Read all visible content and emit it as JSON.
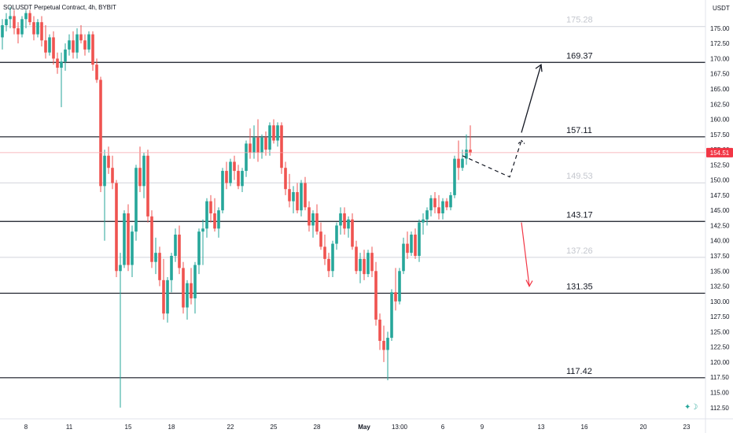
{
  "header": {
    "symbol_title": "SOLUSDT Perpetual Contract, 4h, BYBIT",
    "currency": "USDT"
  },
  "colors": {
    "up": "#26a69a",
    "down": "#ef5350",
    "down_arrow": "#f23645",
    "price_badge": "#f23645",
    "level_strong": "#131722",
    "level_faint": "#d1d4dc"
  },
  "chart_data": {
    "type": "candlestick",
    "timeframe": "4h",
    "ylim": [
      111,
      178
    ],
    "y_ticks": [
      112.5,
      115.0,
      117.5,
      120.0,
      122.5,
      125.0,
      127.5,
      130.0,
      132.5,
      135.0,
      137.5,
      140.0,
      142.5,
      145.0,
      147.5,
      150.0,
      152.5,
      155.0,
      157.5,
      160.0,
      162.5,
      165.0,
      167.5,
      170.0,
      172.5,
      175.0
    ],
    "y_tick_labels": [
      "112.50",
      "115.00",
      "117.50",
      "120.00",
      "122.50",
      "125.00",
      "127.50",
      "130.00",
      "132.50",
      "135.00",
      "137.50",
      "140.00",
      "142.50",
      "145.00",
      "147.50",
      "150.00",
      "152.50",
      "155.00",
      "157.50",
      "160.00",
      "162.50",
      "165.00",
      "167.50",
      "170.00",
      "172.50",
      "175.00"
    ],
    "x_tick_labels": [
      "8",
      "11",
      "15",
      "18",
      "22",
      "25",
      "28",
      "May",
      "13:00",
      "6",
      "9",
      "13",
      "16",
      "20",
      "23"
    ],
    "x_tick_bar_index": [
      6,
      17,
      32,
      43,
      58,
      69,
      80,
      92,
      101,
      112,
      122,
      137,
      148,
      163,
      174
    ],
    "current_price": 154.51,
    "current_price_label": "154.51",
    "levels": [
      {
        "value": 175.28,
        "label": "175.28",
        "style": "faint"
      },
      {
        "value": 169.37,
        "label": "169.37",
        "style": "strong"
      },
      {
        "value": 157.11,
        "label": "157.11",
        "style": "strong"
      },
      {
        "value": 149.53,
        "label": "149.53",
        "style": "faint"
      },
      {
        "value": 143.17,
        "label": "143.17",
        "style": "strong"
      },
      {
        "value": 137.26,
        "label": "137.26",
        "style": "faint"
      },
      {
        "value": 131.35,
        "label": "131.35",
        "style": "strong"
      },
      {
        "value": 117.42,
        "label": "117.42",
        "style": "strong"
      }
    ],
    "projection": {
      "dashed_path": [
        [
          117,
          154.0
        ],
        [
          129,
          150.5
        ],
        [
          132,
          156.5
        ]
      ],
      "up_arrow": [
        [
          132,
          157.8
        ],
        [
          137,
          169.0
        ]
      ],
      "down_arrow": [
        [
          132,
          143.0
        ],
        [
          134,
          132.5
        ]
      ]
    },
    "candles": [
      [
        0,
        173.5,
        176.5,
        171.5,
        175.5
      ],
      [
        1,
        175.5,
        177.5,
        174.5,
        176.5
      ],
      [
        2,
        176.5,
        178.5,
        175.0,
        177.0
      ],
      [
        3,
        177.0,
        178.0,
        174.0,
        175.0
      ],
      [
        4,
        175.0,
        176.0,
        172.5,
        174.0
      ],
      [
        5,
        174.0,
        177.0,
        173.5,
        176.5
      ],
      [
        6,
        176.5,
        178.0,
        175.0,
        177.5
      ],
      [
        7,
        177.5,
        178.0,
        175.5,
        176.0
      ],
      [
        8,
        176.0,
        177.0,
        173.0,
        174.0
      ],
      [
        9,
        174.0,
        176.5,
        173.5,
        176.0
      ],
      [
        10,
        176.0,
        177.0,
        172.0,
        173.0
      ],
      [
        11,
        173.0,
        175.5,
        170.0,
        171.0
      ],
      [
        12,
        171.0,
        174.0,
        170.5,
        173.5
      ],
      [
        13,
        173.5,
        174.5,
        169.0,
        170.0
      ],
      [
        14,
        170.0,
        171.0,
        167.5,
        168.5
      ],
      [
        15,
        168.5,
        171.0,
        162.0,
        169.5
      ],
      [
        16,
        169.5,
        172.5,
        168.0,
        171.5
      ],
      [
        17,
        171.5,
        174.0,
        170.5,
        173.0
      ],
      [
        18,
        173.0,
        174.5,
        170.0,
        171.0
      ],
      [
        19,
        171.0,
        175.0,
        170.0,
        174.0
      ],
      [
        20,
        174.0,
        175.5,
        172.5,
        173.0
      ],
      [
        21,
        173.0,
        174.0,
        170.5,
        171.5
      ],
      [
        22,
        171.5,
        174.5,
        171.0,
        174.0
      ],
      [
        23,
        174.0,
        174.5,
        168.0,
        169.0
      ],
      [
        24,
        169.0,
        170.0,
        166.0,
        166.5
      ],
      [
        25,
        166.5,
        167.0,
        148.0,
        149.0
      ],
      [
        26,
        149.0,
        155.0,
        140.0,
        154.0
      ],
      [
        27,
        154.0,
        155.5,
        151.0,
        152.0
      ],
      [
        28,
        152.0,
        154.0,
        148.5,
        149.5
      ],
      [
        29,
        149.5,
        150.0,
        134.0,
        135.0
      ],
      [
        30,
        135.0,
        138.0,
        112.5,
        136.0
      ],
      [
        31,
        136.0,
        145.0,
        135.5,
        144.5
      ],
      [
        32,
        144.5,
        146.0,
        135.0,
        136.0
      ],
      [
        33,
        136.0,
        142.5,
        134.0,
        141.5
      ],
      [
        34,
        141.5,
        152.5,
        140.0,
        152.0
      ],
      [
        35,
        152.0,
        155.5,
        148.0,
        149.0
      ],
      [
        36,
        149.0,
        154.5,
        147.0,
        154.0
      ],
      [
        37,
        154.0,
        155.0,
        143.0,
        144.0
      ],
      [
        38,
        144.0,
        145.0,
        135.5,
        136.5
      ],
      [
        39,
        136.5,
        140.5,
        134.5,
        138.0
      ],
      [
        40,
        138.0,
        139.0,
        132.5,
        133.5
      ],
      [
        41,
        133.5,
        137.0,
        127.0,
        128.0
      ],
      [
        42,
        128.0,
        134.0,
        126.5,
        133.5
      ],
      [
        43,
        133.5,
        138.0,
        131.5,
        137.5
      ],
      [
        44,
        137.5,
        142.0,
        136.5,
        141.0
      ],
      [
        45,
        141.0,
        142.5,
        134.5,
        135.5
      ],
      [
        46,
        135.5,
        136.5,
        128.0,
        129.0
      ],
      [
        47,
        129.0,
        133.5,
        127.0,
        133.0
      ],
      [
        48,
        133.0,
        135.5,
        129.5,
        130.5
      ],
      [
        49,
        130.5,
        136.5,
        128.0,
        136.0
      ],
      [
        50,
        136.0,
        142.0,
        134.5,
        141.5
      ],
      [
        51,
        141.5,
        143.5,
        136.0,
        142.0
      ],
      [
        52,
        142.0,
        147.0,
        140.5,
        146.5
      ],
      [
        53,
        146.5,
        147.5,
        143.0,
        144.5
      ],
      [
        54,
        144.5,
        147.0,
        141.5,
        142.0
      ],
      [
        55,
        142.0,
        145.5,
        140.5,
        145.0
      ],
      [
        56,
        145.0,
        152.0,
        144.5,
        151.5
      ],
      [
        57,
        151.5,
        153.0,
        148.5,
        149.5
      ],
      [
        58,
        149.5,
        153.5,
        149.0,
        153.0
      ],
      [
        59,
        153.0,
        154.0,
        150.0,
        151.5
      ],
      [
        60,
        151.5,
        152.5,
        148.5,
        149.0
      ],
      [
        61,
        149.0,
        152.0,
        148.0,
        151.5
      ],
      [
        62,
        151.5,
        156.5,
        150.5,
        156.0
      ],
      [
        63,
        156.0,
        158.5,
        153.5,
        154.5
      ],
      [
        64,
        154.5,
        159.0,
        153.5,
        157.0
      ],
      [
        65,
        157.0,
        160.0,
        153.0,
        154.5
      ],
      [
        66,
        154.5,
        157.5,
        153.5,
        157.0
      ],
      [
        67,
        157.0,
        158.0,
        154.0,
        155.0
      ],
      [
        68,
        155.0,
        159.5,
        154.0,
        159.0
      ],
      [
        69,
        159.0,
        160.0,
        156.0,
        156.5
      ],
      [
        70,
        156.5,
        159.5,
        155.5,
        159.0
      ],
      [
        71,
        159.0,
        159.5,
        151.0,
        152.0
      ],
      [
        72,
        152.0,
        153.0,
        147.5,
        148.5
      ],
      [
        73,
        148.5,
        151.0,
        145.5,
        146.5
      ],
      [
        74,
        146.5,
        149.0,
        144.5,
        148.0
      ],
      [
        75,
        148.0,
        149.5,
        144.5,
        145.0
      ],
      [
        76,
        145.0,
        150.0,
        144.0,
        149.5
      ],
      [
        77,
        149.5,
        150.5,
        145.0,
        145.5
      ],
      [
        78,
        145.5,
        146.5,
        141.5,
        142.5
      ],
      [
        79,
        142.5,
        145.0,
        140.5,
        144.5
      ],
      [
        80,
        144.5,
        146.0,
        141.0,
        141.5
      ],
      [
        81,
        141.5,
        143.0,
        138.5,
        139.0
      ],
      [
        82,
        139.0,
        141.0,
        136.0,
        137.0
      ],
      [
        83,
        137.0,
        138.0,
        134.0,
        135.0
      ],
      [
        84,
        135.0,
        140.0,
        134.0,
        139.5
      ],
      [
        85,
        139.5,
        143.0,
        138.5,
        142.5
      ],
      [
        86,
        142.5,
        145.5,
        141.0,
        144.5
      ],
      [
        87,
        144.5,
        145.5,
        141.0,
        142.0
      ],
      [
        88,
        142.0,
        144.0,
        140.5,
        143.5
      ],
      [
        89,
        143.5,
        144.5,
        138.5,
        139.0
      ],
      [
        90,
        139.0,
        140.0,
        134.5,
        135.0
      ],
      [
        91,
        135.0,
        138.0,
        133.0,
        137.0
      ],
      [
        92,
        137.0,
        138.5,
        133.5,
        134.5
      ],
      [
        93,
        134.5,
        138.5,
        134.0,
        138.0
      ],
      [
        94,
        138.0,
        139.0,
        134.0,
        135.0
      ],
      [
        95,
        135.0,
        136.5,
        126.0,
        127.0
      ],
      [
        96,
        127.0,
        128.0,
        122.0,
        123.5
      ],
      [
        97,
        123.5,
        126.0,
        120.0,
        122.0
      ],
      [
        98,
        122.0,
        125.0,
        117.0,
        124.0
      ],
      [
        99,
        124.0,
        132.0,
        123.5,
        131.5
      ],
      [
        100,
        131.5,
        135.5,
        128.5,
        130.0
      ],
      [
        101,
        130.0,
        135.5,
        129.5,
        135.0
      ],
      [
        102,
        135.0,
        140.5,
        134.5,
        139.5
      ],
      [
        103,
        139.5,
        141.5,
        137.0,
        138.0
      ],
      [
        104,
        138.0,
        141.5,
        137.5,
        141.0
      ],
      [
        105,
        141.0,
        142.0,
        137.0,
        137.5
      ],
      [
        106,
        137.5,
        143.5,
        136.5,
        143.0
      ],
      [
        107,
        143.0,
        144.5,
        141.0,
        143.5
      ],
      [
        108,
        143.5,
        145.5,
        142.5,
        145.0
      ],
      [
        109,
        145.0,
        147.5,
        144.0,
        147.0
      ],
      [
        110,
        147.0,
        148.0,
        144.5,
        145.5
      ],
      [
        111,
        145.5,
        147.5,
        143.5,
        144.5
      ],
      [
        112,
        144.5,
        147.0,
        143.5,
        146.5
      ],
      [
        113,
        146.5,
        147.0,
        145.0,
        145.5
      ],
      [
        114,
        145.5,
        148.0,
        145.0,
        147.5
      ],
      [
        115,
        147.5,
        154.0,
        147.0,
        153.5
      ],
      [
        116,
        153.5,
        156.5,
        150.0,
        152.0
      ],
      [
        117,
        152.0,
        155.0,
        151.5,
        153.5
      ],
      [
        118,
        153.5,
        157.5,
        152.5,
        155.0
      ],
      [
        119,
        155.0,
        159.0,
        154.0,
        154.5
      ]
    ]
  }
}
